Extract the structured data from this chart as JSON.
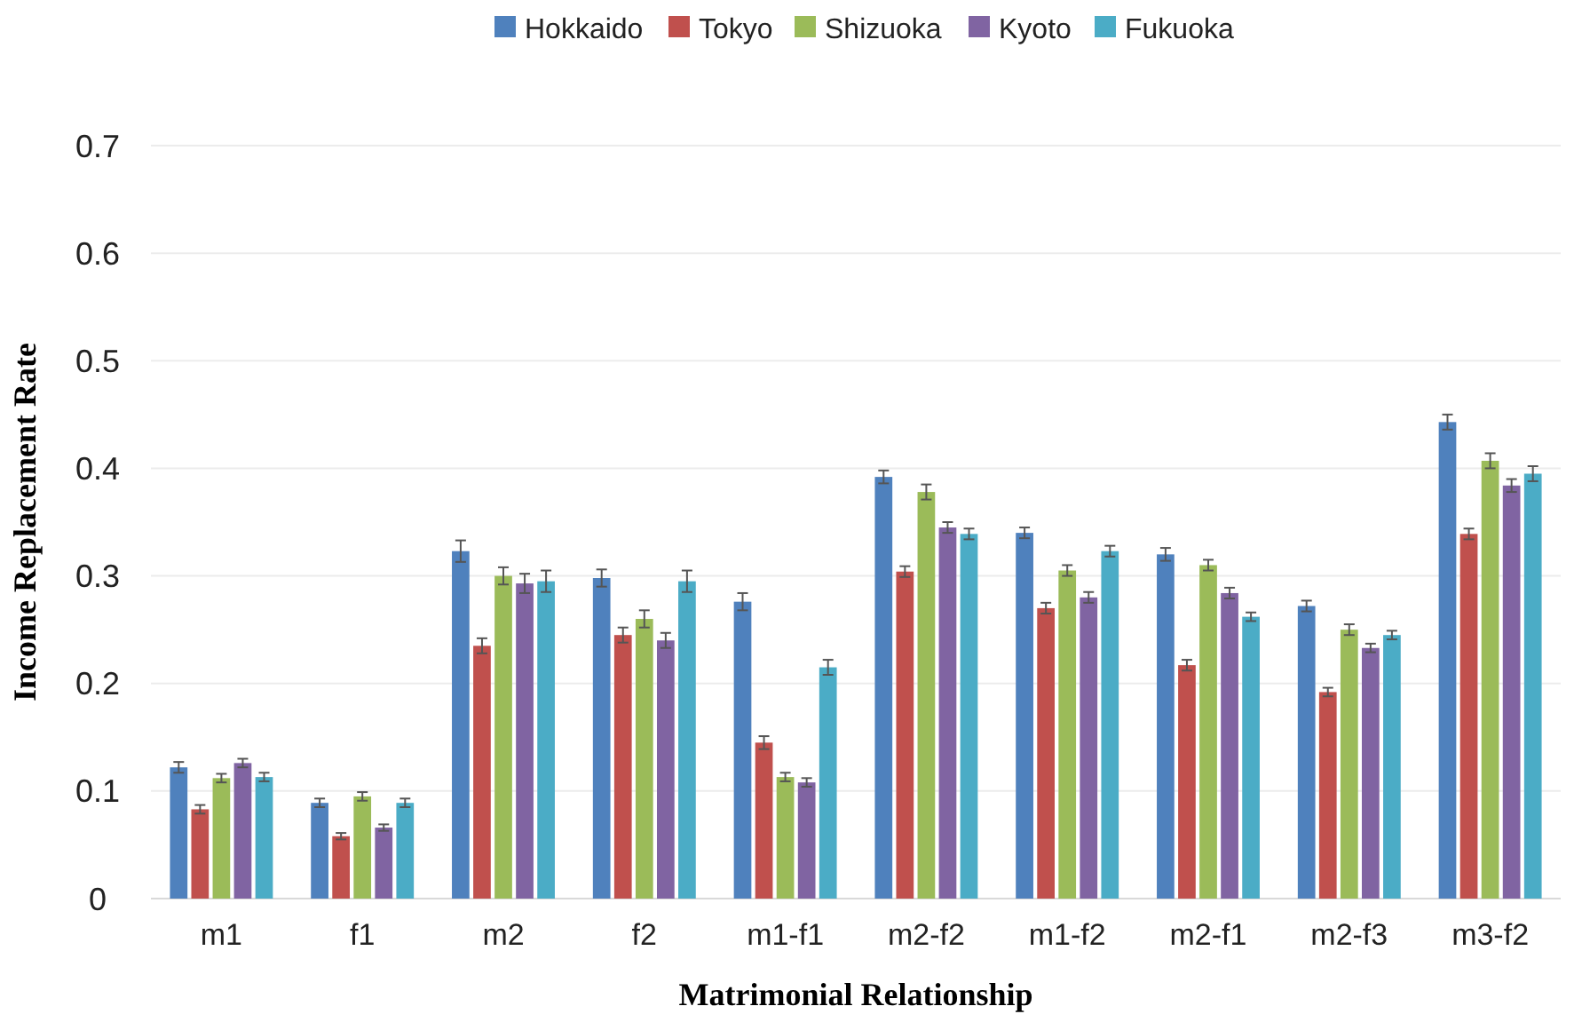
{
  "chart_data": {
    "type": "bar",
    "xlabel": "Matrimonial Relationship",
    "ylabel": "Income Replacement Rate",
    "categories": [
      "m1",
      "f1",
      "m2",
      "f2",
      "m1-f1",
      "m2-f2",
      "m1-f2",
      "m2-f1",
      "m2-f3",
      "m3-f2"
    ],
    "series": [
      {
        "name": "Hokkaido",
        "color": "#4f81bd",
        "values": [
          0.122,
          0.089,
          0.323,
          0.298,
          0.276,
          0.392,
          0.34,
          0.32,
          0.272,
          0.443
        ],
        "errors": [
          0.005,
          0.004,
          0.01,
          0.008,
          0.008,
          0.006,
          0.005,
          0.006,
          0.005,
          0.007
        ]
      },
      {
        "name": "Tokyo",
        "color": "#c0504d",
        "values": [
          0.083,
          0.058,
          0.235,
          0.245,
          0.145,
          0.304,
          0.27,
          0.217,
          0.192,
          0.339
        ],
        "errors": [
          0.004,
          0.003,
          0.007,
          0.007,
          0.006,
          0.005,
          0.005,
          0.005,
          0.004,
          0.005
        ]
      },
      {
        "name": "Shizuoka",
        "color": "#9bbb59",
        "values": [
          0.112,
          0.095,
          0.3,
          0.26,
          0.113,
          0.378,
          0.305,
          0.31,
          0.25,
          0.407
        ],
        "errors": [
          0.004,
          0.004,
          0.008,
          0.008,
          0.004,
          0.007,
          0.005,
          0.005,
          0.005,
          0.007
        ]
      },
      {
        "name": "Kyoto",
        "color": "#8064a2",
        "values": [
          0.126,
          0.066,
          0.293,
          0.24,
          0.108,
          0.345,
          0.28,
          0.284,
          0.233,
          0.384
        ],
        "errors": [
          0.004,
          0.003,
          0.009,
          0.007,
          0.004,
          0.005,
          0.005,
          0.005,
          0.004,
          0.006
        ]
      },
      {
        "name": "Fukuoka",
        "color": "#4bacc6",
        "values": [
          0.113,
          0.089,
          0.295,
          0.295,
          0.215,
          0.339,
          0.323,
          0.262,
          0.245,
          0.395
        ],
        "errors": [
          0.004,
          0.004,
          0.01,
          0.01,
          0.007,
          0.005,
          0.005,
          0.004,
          0.004,
          0.007
        ]
      }
    ],
    "ylim": [
      0,
      0.7
    ],
    "yticks": [
      0,
      0.1,
      0.2,
      0.3,
      0.4,
      0.5,
      0.6,
      0.7
    ],
    "grid": "y",
    "legend": "top"
  }
}
